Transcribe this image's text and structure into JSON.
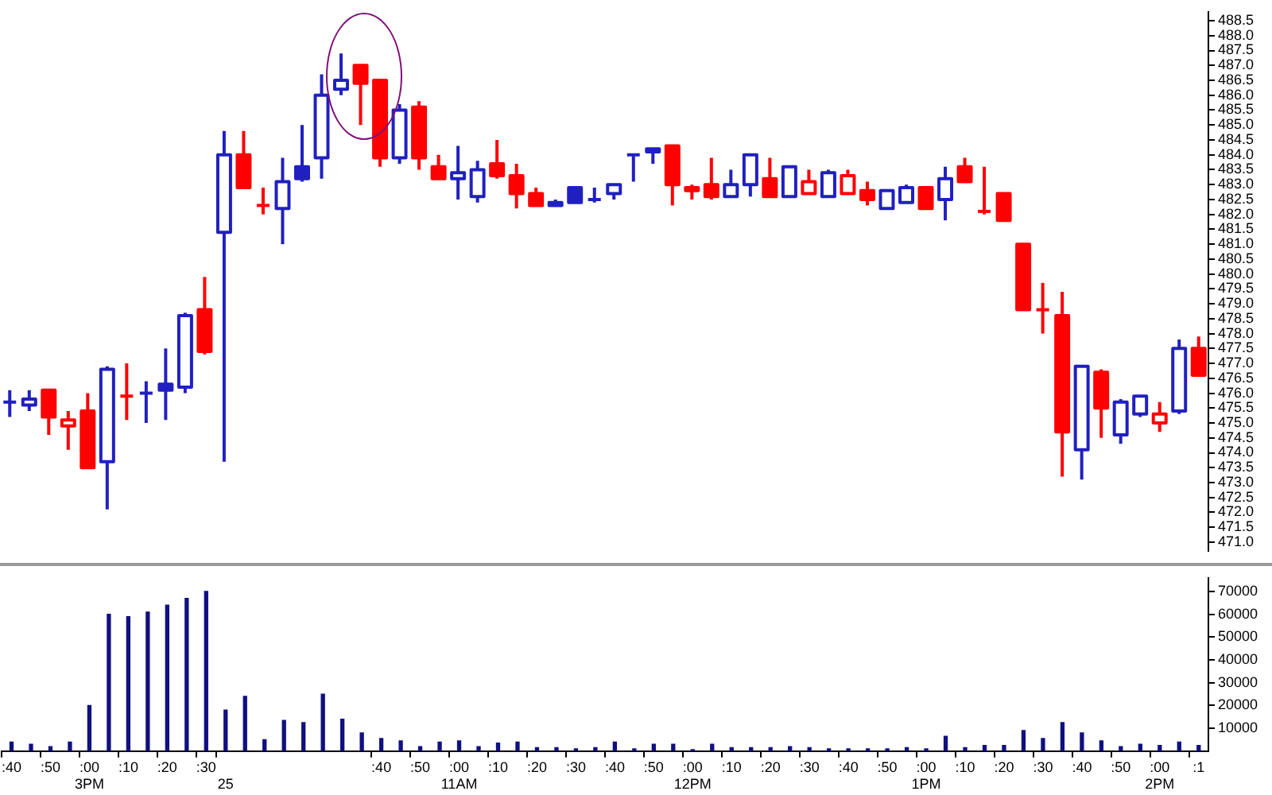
{
  "chart_data": [
    {
      "type": "candlestick",
      "tick_labels": "y",
      "ylim": [
        470.7,
        488.8
      ],
      "categories": [
        null,
        null,
        null,
        null,
        null,
        null,
        null,
        null,
        null,
        null,
        null,
        null,
        null,
        null,
        null,
        null,
        null,
        null,
        null,
        null,
        null,
        null,
        null,
        null,
        null,
        null,
        null,
        null,
        null,
        null,
        null,
        null,
        null,
        null,
        null,
        null,
        null,
        null,
        null,
        null,
        null,
        null,
        null,
        null,
        null,
        null,
        null,
        null,
        null,
        null,
        null,
        null,
        null,
        null,
        null,
        null,
        null,
        null,
        null,
        null,
        null,
        null
      ],
      "ohlc": [
        [
          475.7,
          476.1,
          475.2,
          475.7
        ],
        [
          475.6,
          476.1,
          475.4,
          475.8
        ],
        [
          476.1,
          476.1,
          474.6,
          475.2
        ],
        [
          474.9,
          475.4,
          474.1,
          475.1
        ],
        [
          475.4,
          476.0,
          473.5,
          473.5
        ],
        [
          473.7,
          476.9,
          472.1,
          476.8
        ],
        [
          475.9,
          477.0,
          475.1,
          475.9
        ],
        [
          476.0,
          476.4,
          475.0,
          476.0
        ],
        [
          476.3,
          477.5,
          475.1,
          476.1
        ],
        [
          476.2,
          478.7,
          476.0,
          478.6
        ],
        [
          478.8,
          479.9,
          477.3,
          477.4
        ],
        [
          481.4,
          484.8,
          473.7,
          484.0
        ],
        [
          484.0,
          484.8,
          482.9,
          482.9
        ],
        [
          482.3,
          482.9,
          482.0,
          482.3
        ],
        [
          482.2,
          483.9,
          481.0,
          483.1
        ],
        [
          483.6,
          485.0,
          483.1,
          483.2
        ],
        [
          483.9,
          486.7,
          483.2,
          486.0
        ],
        [
          486.2,
          487.4,
          486.0,
          486.5
        ],
        [
          487.0,
          487.0,
          485.0,
          486.4
        ],
        [
          486.5,
          486.5,
          483.6,
          483.9
        ],
        [
          483.9,
          485.7,
          483.7,
          485.5
        ],
        [
          485.6,
          485.8,
          483.5,
          483.9
        ],
        [
          483.6,
          484.0,
          483.2,
          483.2
        ],
        [
          483.2,
          484.3,
          482.5,
          483.4
        ],
        [
          482.6,
          483.8,
          482.4,
          483.5
        ],
        [
          483.7,
          484.5,
          483.2,
          483.3
        ],
        [
          483.3,
          483.7,
          482.2,
          482.7
        ],
        [
          482.7,
          482.9,
          482.3,
          482.3
        ],
        [
          482.4,
          482.5,
          482.3,
          482.3
        ],
        [
          482.9,
          482.9,
          482.4,
          482.4
        ],
        [
          482.5,
          482.9,
          482.4,
          482.5
        ],
        [
          482.7,
          483.0,
          482.5,
          483.0
        ],
        [
          484.0,
          484.0,
          483.1,
          484.0
        ],
        [
          484.1,
          484.2,
          483.7,
          484.2
        ],
        [
          484.3,
          484.3,
          482.3,
          483.0
        ],
        [
          482.8,
          483.0,
          482.5,
          482.9
        ],
        [
          483.0,
          483.9,
          482.5,
          482.6
        ],
        [
          482.6,
          483.5,
          482.6,
          483.0
        ],
        [
          483.0,
          484.0,
          482.6,
          484.0
        ],
        [
          483.2,
          483.9,
          482.6,
          482.6
        ],
        [
          482.6,
          483.6,
          482.6,
          483.6
        ],
        [
          482.7,
          483.5,
          482.7,
          483.1
        ],
        [
          482.6,
          483.5,
          482.6,
          483.4
        ],
        [
          482.7,
          483.5,
          482.7,
          483.3
        ],
        [
          482.8,
          483.1,
          482.3,
          482.5
        ],
        [
          482.2,
          482.8,
          482.2,
          482.8
        ],
        [
          482.4,
          483.0,
          482.4,
          482.9
        ],
        [
          482.9,
          482.9,
          482.2,
          482.2
        ],
        [
          482.5,
          483.6,
          481.8,
          483.2
        ],
        [
          483.6,
          483.9,
          483.1,
          483.1
        ],
        [
          482.1,
          483.6,
          482.0,
          482.1
        ],
        [
          482.7,
          482.7,
          481.8,
          481.8
        ],
        [
          481.0,
          481.0,
          478.8,
          478.8
        ],
        [
          478.8,
          479.7,
          478.0,
          478.8
        ],
        [
          478.6,
          479.4,
          473.2,
          474.7
        ],
        [
          474.1,
          476.9,
          473.1,
          476.9
        ],
        [
          476.7,
          476.8,
          474.5,
          475.5
        ],
        [
          474.6,
          475.8,
          474.3,
          475.7
        ],
        [
          475.3,
          475.9,
          475.2,
          475.9
        ],
        [
          475.0,
          475.7,
          474.7,
          475.3
        ],
        [
          475.4,
          477.8,
          475.3,
          477.5
        ],
        [
          477.5,
          477.9,
          476.6,
          476.6
        ]
      ],
      "colors": [
        "#2020c0",
        "#2020c0",
        "#ff0000",
        "#ff0000",
        "#ff0000",
        "#2020c0",
        "#ff0000",
        "#2020c0",
        "#2020c0",
        "#2020c0",
        "#ff0000",
        "#2020c0",
        "#ff0000",
        "#ff0000",
        "#2020c0",
        "#2020c0",
        "#2020c0",
        "#2020c0",
        "#ff0000",
        "#ff0000",
        "#2020c0",
        "#ff0000",
        "#ff0000",
        "#2020c0",
        "#2020c0",
        "#ff0000",
        "#ff0000",
        "#ff0000",
        "#2020c0",
        "#2020c0",
        "#2020c0",
        "#2020c0",
        "#2020c0",
        "#2020c0",
        "#ff0000",
        "#ff0000",
        "#ff0000",
        "#2020c0",
        "#2020c0",
        "#ff0000",
        "#2020c0",
        "#ff0000",
        "#2020c0",
        "#ff0000",
        "#ff0000",
        "#2020c0",
        "#2020c0",
        "#ff0000",
        "#2020c0",
        "#ff0000",
        "#ff0000",
        "#ff0000",
        "#ff0000",
        "#ff0000",
        "#ff0000",
        "#2020c0",
        "#ff0000",
        "#2020c0",
        "#2020c0",
        "#ff0000",
        "#2020c0",
        "#ff0000"
      ],
      "yticks": [
        {
          "value": 471,
          "label": "471.0"
        },
        471.5,
        {
          "value": 472,
          "label": "472.0"
        },
        472.5,
        {
          "value": 473,
          "label": "473.0"
        },
        473.5,
        {
          "value": 474,
          "label": "474.0"
        },
        474.5,
        {
          "value": 475,
          "label": "475.0"
        },
        475.5,
        {
          "value": 476,
          "label": "476.0"
        },
        476.5,
        {
          "value": 477,
          "label": "477.0"
        },
        477.5,
        {
          "value": 478,
          "label": "478.0"
        },
        478.5,
        {
          "value": 479,
          "label": "479.0"
        },
        479.5,
        {
          "value": 480,
          "label": "480.0"
        },
        480.5,
        {
          "value": 481,
          "label": "481.0"
        },
        481.5,
        {
          "value": 482,
          "label": "482.0"
        },
        482.5,
        {
          "value": 483,
          "label": "483.0"
        },
        483.5,
        {
          "value": 484,
          "label": "484.0"
        },
        484.5,
        {
          "value": 485,
          "label": "485.0"
        },
        485.5,
        {
          "value": 486,
          "label": "486.0"
        },
        486.5,
        {
          "value": 487,
          "label": "487.0"
        },
        487.5,
        {
          "value": 488,
          "label": "488.0"
        },
        488.5
      ]
    },
    {
      "type": "bar",
      "color": "#101080",
      "ylim": [
        0,
        76000
      ],
      "yticks": [
        10000,
        20000,
        30000,
        40000,
        50000,
        60000,
        70000
      ],
      "categories": [
        ":40",
        null,
        ":50",
        null,
        ":00\n3PM",
        null,
        ":10",
        null,
        ":20",
        null,
        ":30",
        "\n25",
        null,
        null,
        null,
        null,
        null,
        null,
        null,
        ":40",
        null,
        ":50",
        null,
        ":00\n11AM",
        null,
        ":10",
        null,
        ":20",
        null,
        ":30",
        null,
        ":40",
        null,
        ":50",
        null,
        ":00\n12PM",
        null,
        ":10",
        null,
        ":20",
        null,
        ":30",
        null,
        ":40",
        null,
        ":50",
        null,
        ":00\n1PM",
        null,
        ":10",
        null,
        ":20",
        null,
        ":30",
        null,
        ":40",
        null,
        ":50",
        null,
        ":00\n2PM",
        null,
        ":1"
      ],
      "values": [
        4000,
        3000,
        2000,
        4000,
        20000,
        60000,
        59000,
        61000,
        64000,
        67000,
        70000,
        18000,
        24000,
        5000,
        13500,
        12500,
        25000,
        14000,
        8000,
        5500,
        4500,
        2000,
        4000,
        4500,
        2000,
        3500,
        4000,
        1500,
        1500,
        1000,
        1500,
        4000,
        1000,
        3000,
        3000,
        700,
        3000,
        1500,
        1500,
        1500,
        2000,
        1500,
        1000,
        1000,
        1000,
        1000,
        1500,
        1000,
        6500,
        1500,
        2500,
        2500,
        9000,
        5500,
        12500,
        8000,
        4500,
        2000,
        3000,
        2500,
        4000,
        2500
      ]
    }
  ]
}
